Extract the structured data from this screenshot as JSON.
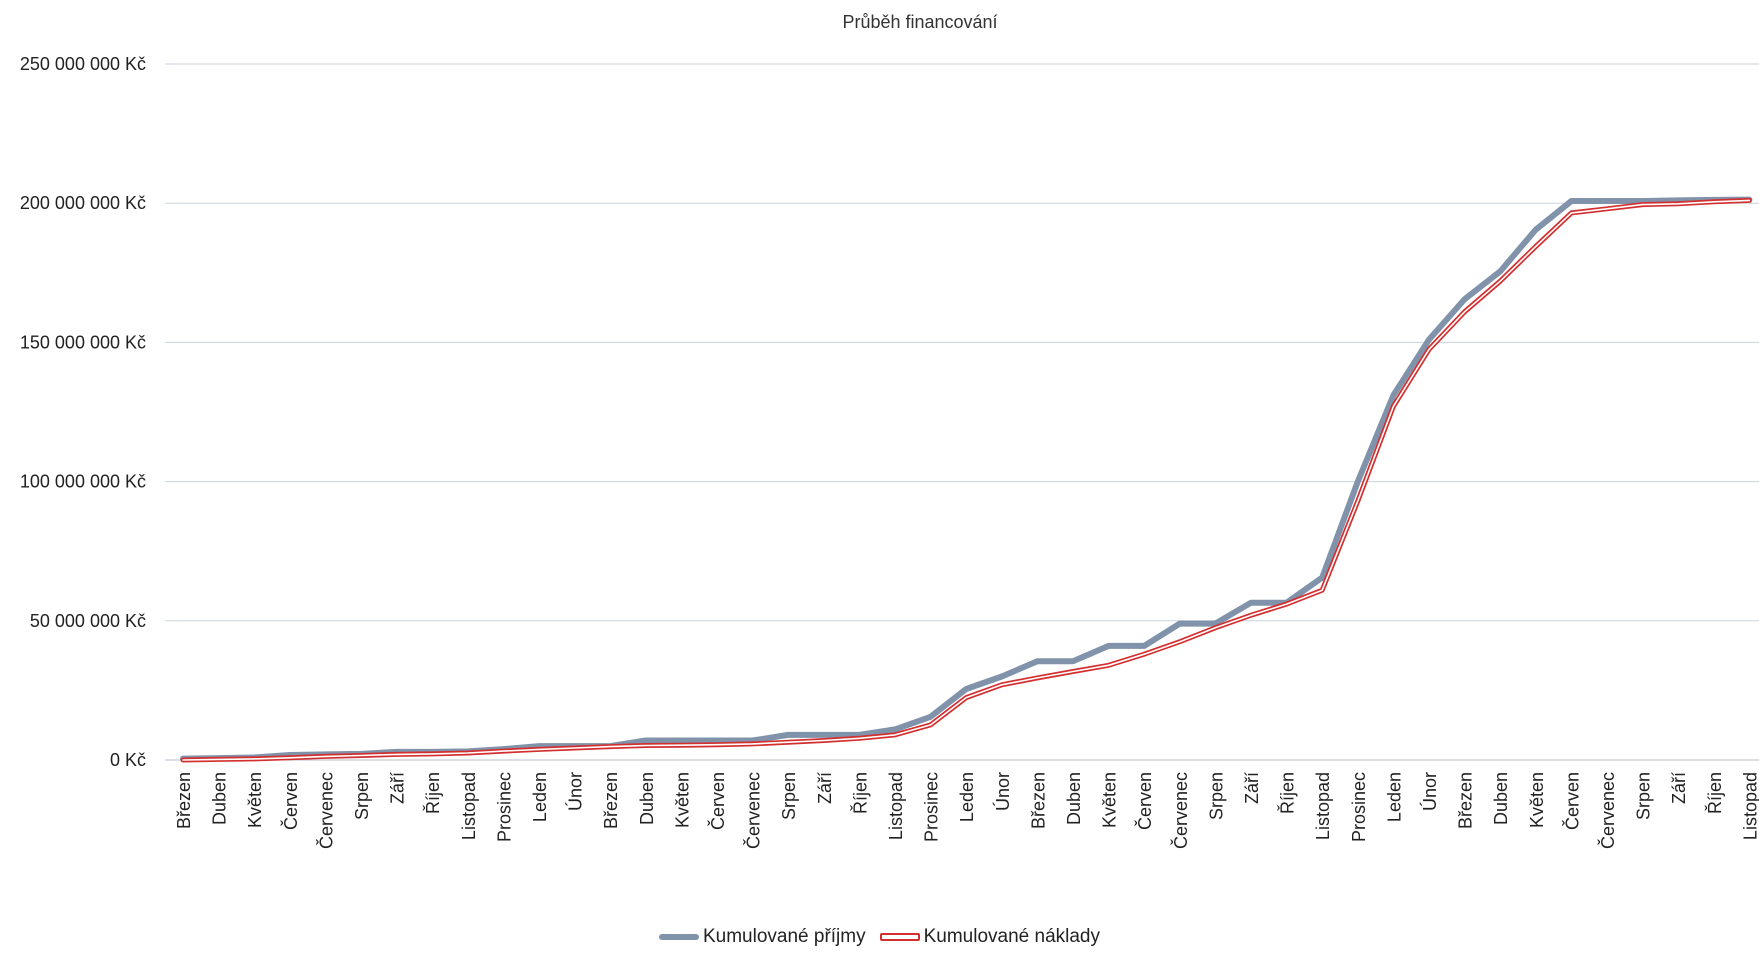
{
  "chart_data": {
    "type": "line",
    "title": "Průběh financování",
    "xlabel": "",
    "ylabel": "",
    "ylim": [
      0,
      250000000
    ],
    "y_ticks": [
      "0 Kč",
      "50 000 000 Kč",
      "100 000 000 Kč",
      "150 000 000 Kč",
      "200 000 000 Kč",
      "250 000 000 Kč"
    ],
    "y_tick_values": [
      0,
      50000000,
      100000000,
      150000000,
      200000000,
      250000000
    ],
    "grid": true,
    "legend_position": "bottom",
    "categories": [
      "Březen",
      "Duben",
      "Květen",
      "Červen",
      "Červenec",
      "Srpen",
      "Září",
      "Říjen",
      "Listopad",
      "Prosinec",
      "Leden",
      "Únor",
      "Březen",
      "Duben",
      "Květen",
      "Červen",
      "Červenec",
      "Srpen",
      "Září",
      "Říjen",
      "Listopad",
      "Prosinec",
      "Leden",
      "Únor",
      "Březen",
      "Duben",
      "Květen",
      "Červen",
      "Červenec",
      "Srpen",
      "Září",
      "Říjen",
      "Listopad",
      "Prosinec",
      "Leden",
      "Únor",
      "Březen",
      "Duben",
      "Květen",
      "Červen",
      "Červenec",
      "Srpen",
      "Září",
      "Říjen",
      "Listopad"
    ],
    "series": [
      {
        "name": "Kumulované příjmy",
        "color": "#8093aa",
        "style": "thick",
        "values": [
          500000,
          700000,
          900000,
          1800000,
          2000000,
          2200000,
          2900000,
          2900000,
          3100000,
          3900000,
          5000000,
          5000000,
          5000000,
          7000000,
          7000000,
          7000000,
          7000000,
          9000000,
          9000000,
          9000000,
          11000000,
          15500000,
          25500000,
          30000000,
          35500000,
          35500000,
          41000000,
          41000000,
          49000000,
          49000000,
          56500000,
          56500000,
          65500000,
          100000000,
          131000000,
          151000000,
          165500000,
          175500000,
          190500000,
          200800000,
          200800000,
          200800000,
          201000000,
          201200000,
          201300000
        ]
      },
      {
        "name": "Kumulované náklady",
        "color": "#d32f2f",
        "style": "double",
        "values": [
          0,
          200000,
          400000,
          800000,
          1300000,
          1600000,
          2000000,
          2200000,
          2500000,
          3200000,
          3800000,
          4300000,
          4800000,
          5200000,
          5300000,
          5500000,
          5800000,
          6400000,
          7000000,
          7800000,
          9000000,
          12600000,
          22400000,
          27000000,
          29500000,
          31800000,
          34000000,
          38000000,
          42500000,
          47500000,
          52000000,
          56000000,
          61000000,
          93000000,
          127000000,
          147500000,
          161000000,
          172000000,
          184500000,
          196500000,
          198000000,
          199500000,
          199800000,
          200500000,
          201000000
        ]
      }
    ]
  }
}
